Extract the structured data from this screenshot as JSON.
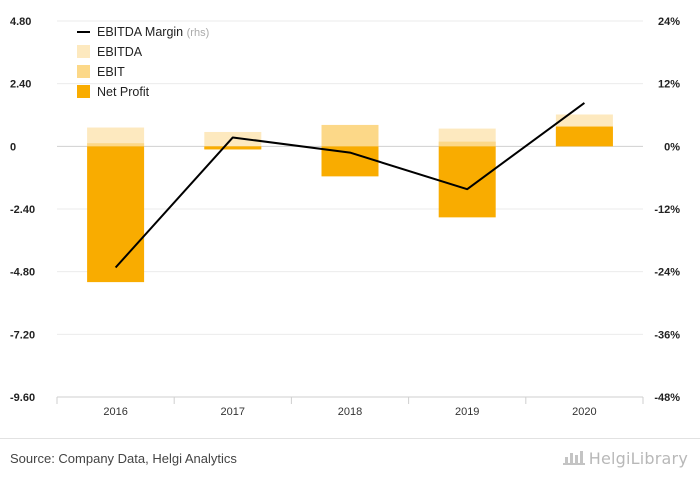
{
  "chart_data": {
    "type": "bar",
    "categories": [
      "2016",
      "2017",
      "2018",
      "2019",
      "2020"
    ],
    "left_axis": {
      "ylim": [
        -9.6,
        4.8
      ],
      "ticks": [
        4.8,
        2.4,
        0,
        -2.4,
        -4.8,
        -7.2,
        -9.6
      ],
      "tick_labels": [
        "4.80",
        "2.40",
        "0",
        "-2.40",
        "-4.80",
        "-7.20",
        "-9.60"
      ]
    },
    "right_axis": {
      "ylim": [
        -48,
        24
      ],
      "ticks": [
        24,
        12,
        0,
        -12,
        -24,
        -36,
        -48
      ],
      "tick_labels": [
        "24%",
        "12%",
        "0%",
        "-12%",
        "-24%",
        "-36%",
        "-48%"
      ]
    },
    "series": [
      {
        "name": "EBITDA",
        "kind": "bar",
        "axis": "left",
        "color": "#fde9bf",
        "values": [
          0.72,
          0.55,
          0.62,
          0.68,
          1.22
        ]
      },
      {
        "name": "EBIT",
        "kind": "bar",
        "axis": "left",
        "color": "#fcd888",
        "values": [
          0.12,
          -0.1,
          0.82,
          0.18,
          0.78
        ]
      },
      {
        "name": "Net Profit",
        "kind": "bar",
        "axis": "left",
        "color": "#f9ac00",
        "values": [
          -5.2,
          -0.12,
          -1.15,
          -2.72,
          0.75
        ]
      },
      {
        "name": "EBITDA Margin",
        "suffix": "(rhs)",
        "kind": "line",
        "axis": "right",
        "color": "#000000",
        "values": [
          -23.2,
          1.7,
          -1.2,
          -8.2,
          8.3
        ]
      }
    ],
    "grid": true,
    "legend_position": "top-left"
  },
  "footer": {
    "source": "Source: Company Data, Helgi Analytics",
    "brand": "HelgiLibrary"
  }
}
